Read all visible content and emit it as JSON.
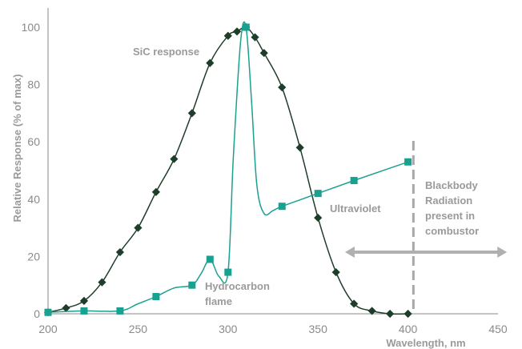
{
  "chart_data": {
    "type": "line",
    "title": "",
    "xlabel": "Wavelength, nm",
    "ylabel": "Relative Response (% of max)",
    "xlim": [
      200,
      450
    ],
    "ylim": [
      0,
      100
    ],
    "x_ticks": [
      200,
      250,
      300,
      350,
      400,
      450
    ],
    "y_ticks": [
      0,
      20,
      40,
      60,
      80,
      100
    ],
    "grid": false,
    "series": [
      {
        "name": "SiC response",
        "color": "#1f3d2b",
        "marker": "diamond",
        "x": [
          200,
          210,
          220,
          230,
          240,
          250,
          260,
          270,
          280,
          290,
          300,
          305,
          310,
          315,
          320,
          330,
          340,
          350,
          360,
          370,
          380,
          390,
          400
        ],
        "y": [
          0.5,
          2,
          4.5,
          11,
          21.5,
          30,
          42.5,
          54,
          70,
          87.5,
          97,
          98.5,
          100,
          96.5,
          91,
          79,
          58,
          33.5,
          14.5,
          3.5,
          1,
          0,
          0
        ]
      },
      {
        "name": "Ultraviolet",
        "color": "#1aa090",
        "marker": "square",
        "markers_x": [
          200,
          220,
          240,
          260,
          280,
          290,
          300,
          310,
          330,
          350,
          370,
          400
        ],
        "markers_y": [
          0.5,
          1,
          1,
          6,
          10,
          19,
          14.5,
          100,
          37.5,
          42,
          46.5,
          53
        ],
        "curve_x": [
          200,
          220,
          240,
          250,
          260,
          270,
          280,
          285,
          290,
          295,
          300,
          303,
          307,
          310,
          313,
          316,
          320,
          325,
          330,
          350,
          370,
          400
        ],
        "curve_y": [
          0.5,
          1,
          1,
          3.5,
          6,
          9,
          10,
          14,
          19,
          13,
          14.5,
          55,
          95,
          100,
          75,
          45,
          35,
          36,
          37.5,
          42,
          46.5,
          53
        ]
      }
    ],
    "annotations": {
      "sic_response": "SiC response",
      "ultraviolet": "Ultraviolet",
      "hydrocarbon_line1": "Hydrocarbon",
      "hydrocarbon_line2": "flame",
      "blackbody_line1": "Blackbody",
      "blackbody_line2": "Radiation",
      "blackbody_line3": "present in",
      "blackbody_line4": "combustor"
    },
    "blackbody_cutoff_x": 403,
    "arrow_range_x": [
      365,
      455
    ],
    "arrow_y": 21.5
  },
  "colors": {
    "axis": "#8a8a8a",
    "annotation": "#9a9a9a",
    "divider": "#a8a8a8",
    "arrow": "#b0b0b0"
  }
}
